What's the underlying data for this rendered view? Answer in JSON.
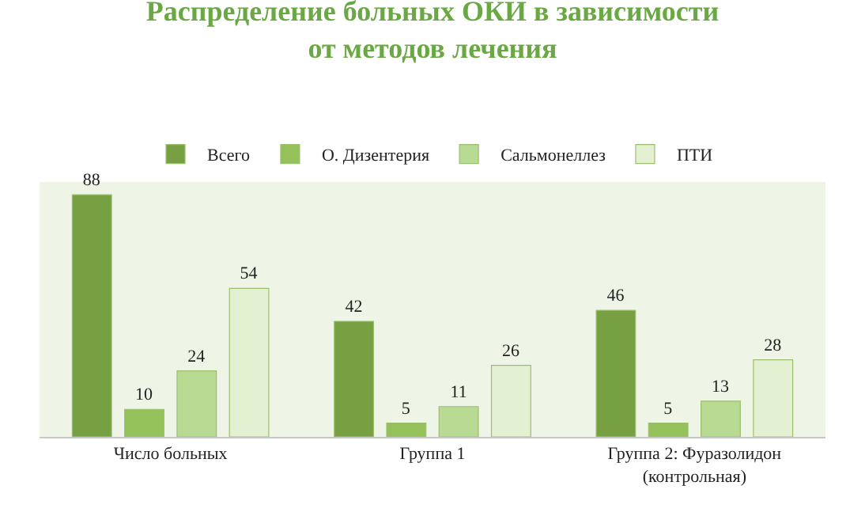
{
  "chart_data": {
    "type": "bar",
    "title": "Распределение больных ОКИ в зависимости от методов лечения",
    "categories": [
      "Число больных",
      "Группа 1",
      "Группа 2: Фуразолидон (контрольная)"
    ],
    "series": [
      {
        "name": "Всего",
        "color": "#77a043",
        "values": [
          88,
          42,
          46
        ]
      },
      {
        "name": "О. Дизентерия",
        "color": "#94c15a",
        "values": [
          10,
          5,
          5
        ]
      },
      {
        "name": "Сальмонеллез",
        "color": "#b9da93",
        "values": [
          24,
          11,
          13
        ]
      },
      {
        "name": "ПТИ",
        "color": "#e3f0d2",
        "values": [
          54,
          26,
          28
        ]
      }
    ],
    "data_labels": true,
    "legend": "top"
  }
}
